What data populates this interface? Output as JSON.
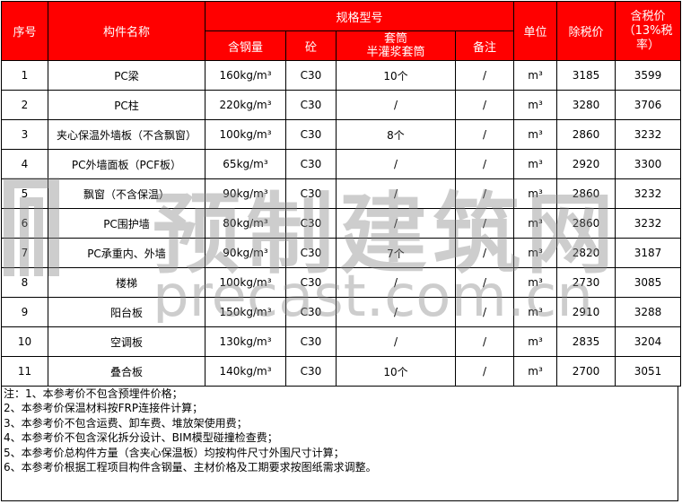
{
  "header": {
    "seq": "序号",
    "name": "构件名称",
    "spec": "规格型号",
    "steel": "含钢量",
    "concrete": "砼",
    "sleeve": "套筒\n半灌浆套筒",
    "remark": "备注",
    "unit": "单位",
    "price_ex": "除税价",
    "price_inc": "含税价（13%税率）"
  },
  "rows": [
    {
      "seq": "1",
      "name": "PC梁",
      "steel": "160kg/m³",
      "concrete": "C30",
      "sleeve": "10个",
      "remark": "/",
      "unit": "m³",
      "price_ex": "3185",
      "price_inc": "3599"
    },
    {
      "seq": "2",
      "name": "PC柱",
      "steel": "220kg/m³",
      "concrete": "C30",
      "sleeve": "/",
      "remark": "/",
      "unit": "m³",
      "price_ex": "3280",
      "price_inc": "3706"
    },
    {
      "seq": "3",
      "name": "夹心保温外墙板（不含飘窗）",
      "steel": "100kg/m³",
      "concrete": "C30",
      "sleeve": "8个",
      "remark": "/",
      "unit": "m³",
      "price_ex": "2860",
      "price_inc": "3232"
    },
    {
      "seq": "4",
      "name": "PC外墙面板（PCF板）",
      "steel": "65kg/m³",
      "concrete": "C30",
      "sleeve": "/",
      "remark": "/",
      "unit": "m³",
      "price_ex": "2920",
      "price_inc": "3300"
    },
    {
      "seq": "5",
      "name": "飘窗（不含保温）",
      "steel": "90kg/m³",
      "concrete": "C30",
      "sleeve": "/",
      "remark": "/",
      "unit": "m³",
      "price_ex": "2860",
      "price_inc": "3232"
    },
    {
      "seq": "6",
      "name": "PC围护墙",
      "steel": "80kg/m³",
      "concrete": "C30",
      "sleeve": "/",
      "remark": "/",
      "unit": "m³",
      "price_ex": "2860",
      "price_inc": "3232"
    },
    {
      "seq": "7",
      "name": "PC承重内、外墙",
      "steel": "90kg/m³",
      "concrete": "C30",
      "sleeve": "7个",
      "remark": "/",
      "unit": "m³",
      "price_ex": "2820",
      "price_inc": "3187"
    },
    {
      "seq": "8",
      "name": "楼梯",
      "steel": "100kg/m³",
      "concrete": "C30",
      "sleeve": "/",
      "remark": "/",
      "unit": "m³",
      "price_ex": "2730",
      "price_inc": "3085"
    },
    {
      "seq": "9",
      "name": "阳台板",
      "steel": "150kg/m³",
      "concrete": "C30",
      "sleeve": "/",
      "remark": "/",
      "unit": "m³",
      "price_ex": "2910",
      "price_inc": "3288"
    },
    {
      "seq": "10",
      "name": "空调板",
      "steel": "130kg/m³",
      "concrete": "C30",
      "sleeve": "/",
      "remark": "/",
      "unit": "m³",
      "price_ex": "2835",
      "price_inc": "3204"
    },
    {
      "seq": "11",
      "name": "叠合板",
      "steel": "140kg/m³",
      "concrete": "C30",
      "sleeve": "10个",
      "remark": "/",
      "unit": "m³",
      "price_ex": "2700",
      "price_inc": "3051"
    }
  ],
  "notes": [
    "注：1、本参考价不包含预埋件价格；",
    "2、本参考价保温材料按FRP连接件计算；",
    "3、本参考价不包含运费、卸车费、堆放架使用费；",
    "4、本参考价不包含深化拆分设计、BIM模型碰撞检查费；",
    "5、本参考价总构件方量（含夹心保温板）均按构件尺寸外围尺寸计算；",
    "6、本参考价根据工程项目构件含钢量、主材价格及工期要求按图纸需求调整。"
  ],
  "watermark": {
    "cn": "预制建筑网",
    "en": "precast.com.cn"
  },
  "colors": {
    "header_bg": "#ff0000",
    "header_text": "#ffffff",
    "watermark": "#9a9a9a"
  }
}
